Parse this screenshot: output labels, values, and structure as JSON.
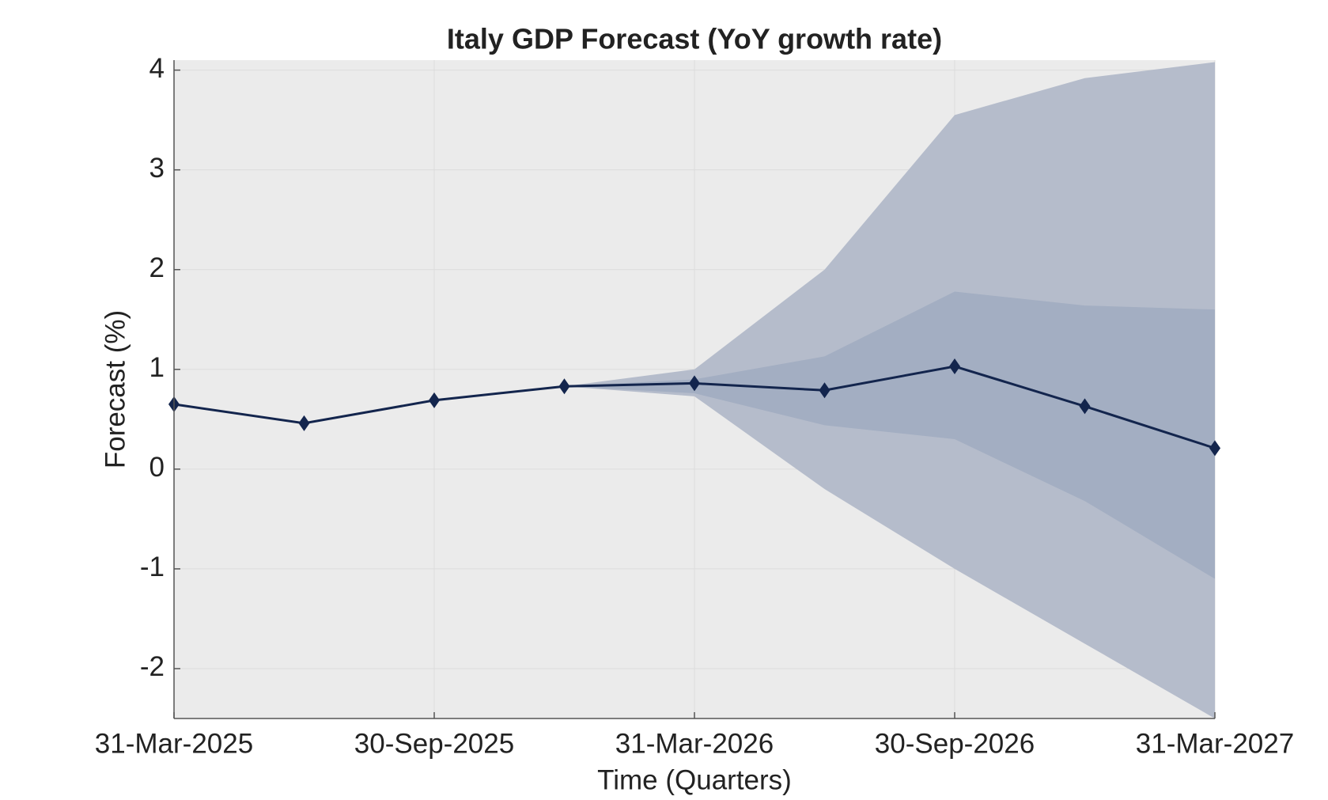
{
  "chart_data": {
    "type": "line",
    "title": "Italy GDP Forecast (YoY growth rate)",
    "x_label": "Time (Quarters)",
    "y_label": "Forecast (%)",
    "categories": [
      "31-Mar-2025",
      null,
      "30-Sep-2025",
      null,
      "31-Mar-2026",
      null,
      "30-Sep-2026",
      null,
      "31-Mar-2027"
    ],
    "series": [
      {
        "color": "#13254d",
        "values": [
          0.65,
          0.46,
          0.69,
          0.83,
          0.86,
          0.79,
          1.03,
          0.63,
          0.21
        ]
      }
    ],
    "bands": [
      {
        "color": "#b5bccb",
        "lower": [
          null,
          null,
          null,
          0.83,
          0.73,
          -0.2,
          -1.0,
          -1.75,
          -2.5
        ],
        "upper": [
          null,
          null,
          null,
          0.83,
          1.0,
          2.0,
          3.55,
          3.92,
          4.08
        ]
      },
      {
        "color": "#a3aec2",
        "lower": [
          null,
          null,
          null,
          0.83,
          0.76,
          0.44,
          0.3,
          -0.32,
          -1.1
        ],
        "upper": [
          null,
          null,
          null,
          0.83,
          0.9,
          1.13,
          1.78,
          1.64,
          1.6
        ]
      }
    ],
    "ylim": [
      -2.5,
      4.1
    ],
    "yticks": [
      -2,
      -1,
      0,
      1,
      2,
      3,
      4
    ],
    "grid": true,
    "background": "#ebebeb"
  }
}
